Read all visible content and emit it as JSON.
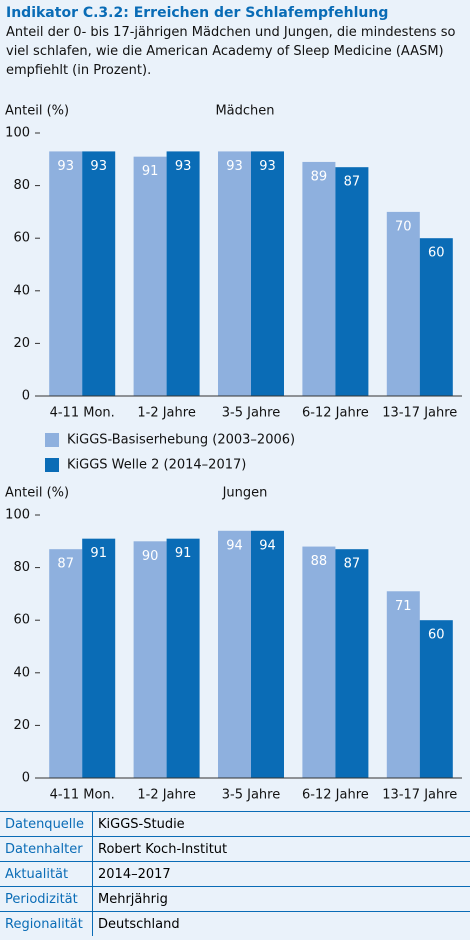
{
  "header": {
    "title": "Indikator C.3.2: Erreichen der Schlafempfehlung",
    "subtitle": "Anteil der 0- bis 17-jährigen Mädchen und Jungen, die mindestens so viel schlafen, wie die American Academy of Sleep Medicine (AASM) empfiehlt (in Prozent)."
  },
  "chart_data": [
    {
      "type": "bar",
      "title": "Mädchen",
      "y_label": "Anteil (%)",
      "categories": [
        "4-11 Mon.",
        "1-2 Jahre",
        "3-5 Jahre",
        "6-12 Jahre",
        "13-17 Jahre"
      ],
      "series": [
        {
          "name": "KiGGS-Basiserhebung (2003–2006)",
          "color": "#8eb0de",
          "values": [
            93,
            91,
            93,
            89,
            70
          ]
        },
        {
          "name": "KiGGS Welle 2 (2014–2017)",
          "color": "#0a6cb6",
          "values": [
            93,
            93,
            93,
            87,
            60
          ]
        }
      ],
      "ylim": [
        0,
        100
      ],
      "yticks": [
        0,
        20,
        40,
        60,
        80,
        100
      ]
    },
    {
      "type": "bar",
      "title": "Jungen",
      "y_label": "Anteil (%)",
      "categories": [
        "4-11 Mon.",
        "1-2 Jahre",
        "3-5 Jahre",
        "6-12 Jahre",
        "13-17 Jahre"
      ],
      "series": [
        {
          "color": "#8eb0de",
          "values": [
            87,
            90,
            94,
            88,
            71
          ]
        },
        {
          "color": "#0a6cb6",
          "values": [
            91,
            91,
            94,
            87,
            60
          ]
        }
      ],
      "ylim": [
        0,
        100
      ],
      "yticks": [
        0,
        20,
        40,
        60,
        80,
        100
      ]
    }
  ],
  "footer": {
    "rows": [
      [
        "Datenquelle",
        "KiGGS-Studie"
      ],
      [
        "Datenhalter",
        "Robert Koch-Institut"
      ],
      [
        "Aktualität",
        "2014–2017"
      ],
      [
        "Periodizität",
        "Mehrjährig"
      ],
      [
        "Regionalität",
        "Deutschland"
      ]
    ]
  }
}
